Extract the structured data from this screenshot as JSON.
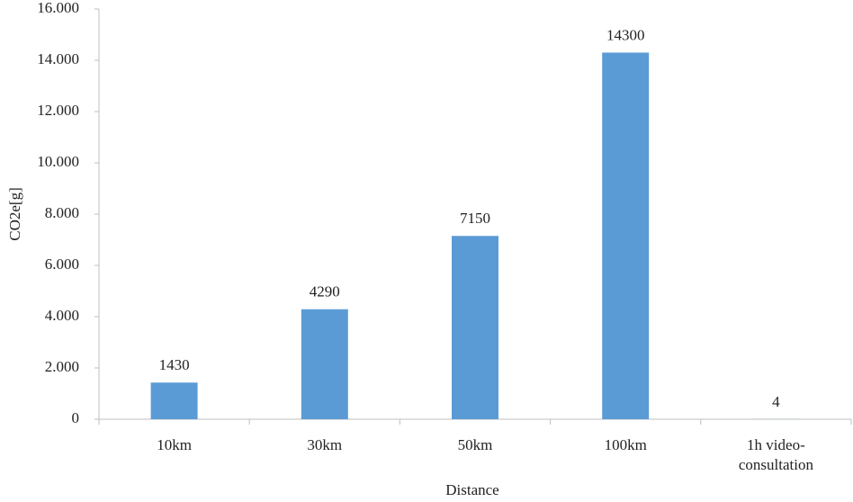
{
  "chart_data": {
    "type": "bar",
    "categories": [
      "10km",
      "30km",
      "50km",
      "100km",
      "1h video-consultation"
    ],
    "values": [
      1430,
      4290,
      7150,
      14300,
      4
    ],
    "color": "#5b9bd5",
    "x_label": "Distance",
    "y_label": "CO2e[g]",
    "ylim": [
      0,
      16000
    ],
    "yticks": [
      0,
      {
        "value": 2000,
        "label": "2.000"
      },
      {
        "value": 4000,
        "label": "4.000"
      },
      {
        "value": 6000,
        "label": "6.000"
      },
      {
        "value": 8000,
        "label": "8.000"
      },
      {
        "value": 10000,
        "label": "10.000"
      },
      {
        "value": 12000,
        "label": "12.000"
      },
      {
        "value": 14000,
        "label": "14.000"
      },
      {
        "value": 16000,
        "label": "16.000"
      }
    ],
    "grid": false
  }
}
